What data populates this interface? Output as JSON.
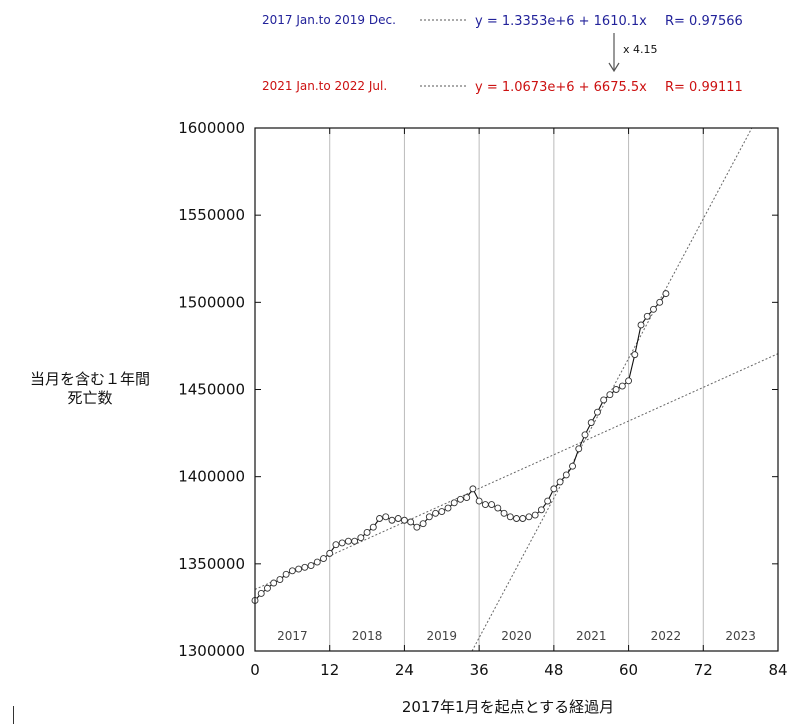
{
  "chart_data": {
    "type": "line",
    "xlabel": "2017年1月を起点とする経過月",
    "ylabel": [
      "当月を含む１年間",
      "死亡数"
    ],
    "xlim": [
      0,
      84
    ],
    "ylim": [
      1300000,
      1600000
    ],
    "x_ticks": [
      0,
      12,
      24,
      36,
      48,
      60,
      72,
      84
    ],
    "x_tick_labels": [
      "0",
      "12",
      "24",
      "36",
      "48",
      "60",
      "72",
      "84"
    ],
    "y_ticks": [
      1300000,
      1350000,
      1400000,
      1450000,
      1500000,
      1550000,
      1600000
    ],
    "y_tick_labels": [
      "1300000",
      "1350000",
      "1400000",
      "1450000",
      "1500000",
      "1550000",
      "1600000"
    ],
    "year_bands": [
      {
        "label": "2017",
        "start": 0,
        "end": 12
      },
      {
        "label": "2018",
        "start": 12,
        "end": 24
      },
      {
        "label": "2019",
        "start": 24,
        "end": 36
      },
      {
        "label": "2020",
        "start": 36,
        "end": 48
      },
      {
        "label": "2021",
        "start": 48,
        "end": 60
      },
      {
        "label": "2022",
        "start": 60,
        "end": 72
      },
      {
        "label": "2023",
        "start": 72,
        "end": 84
      }
    ],
    "vertical_grid": true,
    "series": [
      {
        "x": [
          0,
          1,
          2,
          3,
          4,
          5,
          6,
          7,
          8,
          9,
          10,
          11,
          12,
          13,
          14,
          15,
          16,
          17,
          18,
          19,
          20,
          21,
          22,
          23,
          24,
          25,
          26,
          27,
          28,
          29,
          30,
          31,
          32,
          33,
          34,
          35,
          36,
          37,
          38,
          39,
          40,
          41,
          42,
          43,
          44,
          45,
          46,
          47,
          48,
          49,
          50,
          51,
          52,
          53,
          54,
          55,
          56,
          57,
          58,
          59,
          60,
          61,
          62,
          63,
          64,
          65,
          66
        ],
        "y": [
          1329000,
          1333000,
          1336000,
          1339000,
          1341000,
          1344000,
          1346000,
          1347000,
          1348000,
          1349000,
          1351000,
          1353000,
          1356000,
          1361000,
          1362000,
          1363000,
          1363000,
          1365000,
          1368000,
          1371000,
          1376000,
          1377000,
          1375000,
          1376000,
          1375000,
          1374000,
          1371000,
          1373000,
          1377000,
          1379000,
          1380000,
          1382000,
          1385000,
          1387000,
          1388000,
          1393000,
          1386000,
          1384000,
          1384000,
          1382000,
          1379000,
          1377000,
          1376000,
          1376000,
          1377000,
          1378000,
          1381000,
          1386000,
          1393000,
          1397000,
          1401000,
          1406000,
          1416000,
          1424000,
          1431000,
          1437000,
          1444000,
          1447000,
          1450000,
          1452000,
          1455000,
          1470000,
          1487000,
          1492000,
          1496000,
          1500000,
          1505000
        ]
      }
    ],
    "fits": [
      {
        "range": "2017 Jan.to 2019 Dec.",
        "equation": "y = 1.3353e+6 + 1610.1x",
        "r": "R= 0.97566",
        "color": "#22229a",
        "intercept": 1335300,
        "slope": 1610.1
      },
      {
        "range": "2021 Jan.to 2022 Jul.",
        "equation": "y = 1.0673e+6 + 6675.5x",
        "r": "R= 0.99111",
        "color": "#cc1111",
        "intercept": 1067300,
        "slope": 6675.5
      }
    ],
    "annotation": "x 4.15"
  }
}
